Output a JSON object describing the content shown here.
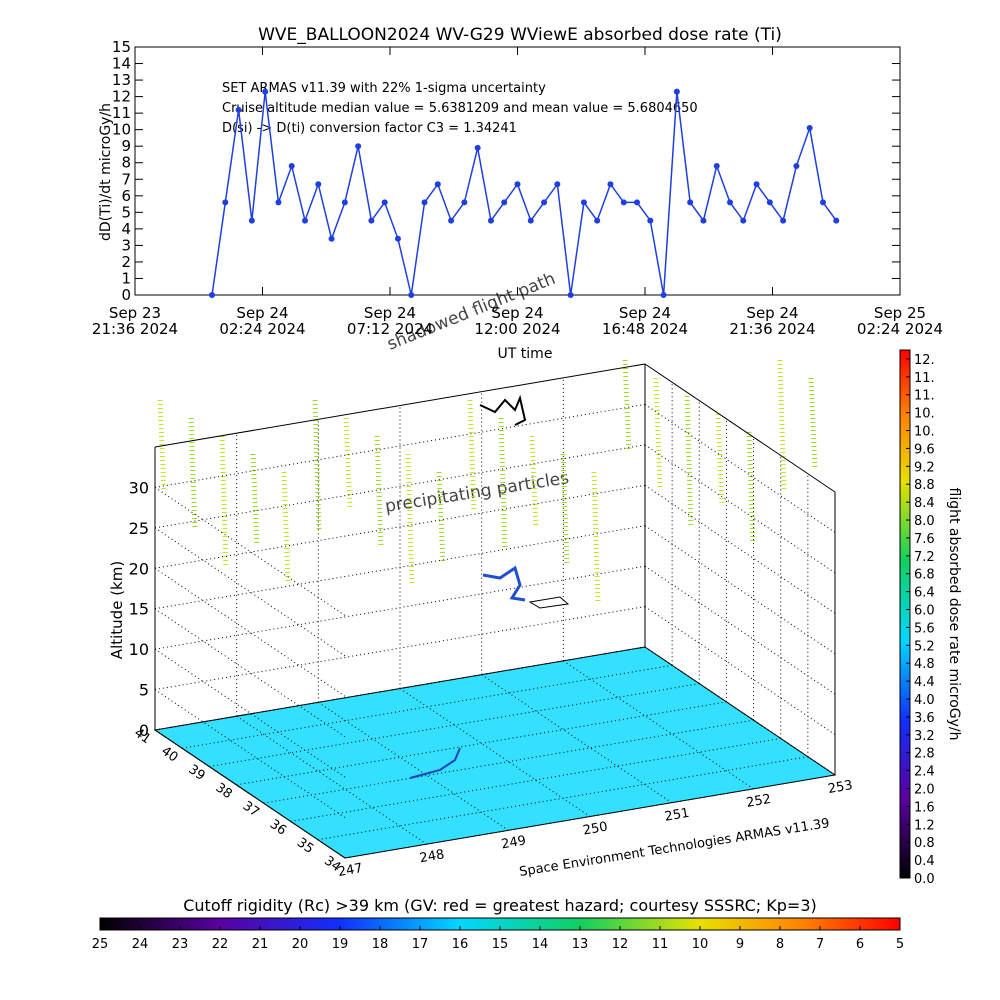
{
  "chart_data": [
    {
      "type": "line",
      "title": "WVE_BALLOON2024 WV-G29 WViewE absorbed dose rate (Ti)",
      "xlabel": "UT time",
      "ylabel": "dD(Ti)/dt microGy/h",
      "annotations": [
        "SET ARMAS v11.39 with 22% 1-sigma uncertainty",
        "Cruise altitude median value = 5.6381209 and mean value = 5.6804650",
        "D(si) -> D(ti) conversion factor C3 = 1.34241"
      ],
      "color": "#1f3fe0",
      "xlim": [
        "2024-09-23T21:36",
        "2024-09-25T02:24"
      ],
      "xticks": [
        {
          "value": "2024-09-23T21:36",
          "label": "Sep 23\n21:36 2024"
        },
        {
          "value": "2024-09-24T02:24",
          "label": "Sep 24\n02:24 2024"
        },
        {
          "value": "2024-09-24T07:12",
          "label": "Sep 24\n07:12 2024"
        },
        {
          "value": "2024-09-24T12:00",
          "label": "Sep 24\n12:00 2024"
        },
        {
          "value": "2024-09-24T16:48",
          "label": "Sep 24\n16:48 2024"
        },
        {
          "value": "2024-09-24T21:36",
          "label": "Sep 24\n21:36 2024"
        },
        {
          "value": "2024-09-25T02:24",
          "label": "Sep 25\n02:24 2024"
        }
      ],
      "ylim": [
        0,
        15
      ],
      "yticks": [
        0,
        1,
        2,
        3,
        4,
        5,
        6,
        7,
        8,
        9,
        10,
        11,
        12,
        13,
        14,
        15
      ],
      "x": [
        "2024-09-24T00:30",
        "2024-09-24T01:00",
        "2024-09-24T01:30",
        "2024-09-24T02:00",
        "2024-09-24T02:30",
        "2024-09-24T03:00",
        "2024-09-24T03:30",
        "2024-09-24T04:00",
        "2024-09-24T04:30",
        "2024-09-24T05:00",
        "2024-09-24T05:30",
        "2024-09-24T06:00",
        "2024-09-24T06:30",
        "2024-09-24T07:00",
        "2024-09-24T07:30",
        "2024-09-24T08:00",
        "2024-09-24T08:30",
        "2024-09-24T09:00",
        "2024-09-24T09:30",
        "2024-09-24T10:00",
        "2024-09-24T10:30",
        "2024-09-24T11:00",
        "2024-09-24T11:30",
        "2024-09-24T12:00",
        "2024-09-24T12:30",
        "2024-09-24T13:00",
        "2024-09-24T13:30",
        "2024-09-24T14:00",
        "2024-09-24T14:30",
        "2024-09-24T15:00",
        "2024-09-24T15:30",
        "2024-09-24T16:00",
        "2024-09-24T16:30",
        "2024-09-24T17:00",
        "2024-09-24T17:30",
        "2024-09-24T18:00",
        "2024-09-24T18:30",
        "2024-09-24T19:00",
        "2024-09-24T19:30",
        "2024-09-24T20:00",
        "2024-09-24T20:30",
        "2024-09-24T21:00",
        "2024-09-24T21:30",
        "2024-09-24T22:00",
        "2024-09-24T22:30",
        "2024-09-24T23:00",
        "2024-09-24T23:30",
        "2024-09-25T00:00"
      ],
      "values": [
        0,
        5.6,
        11.2,
        4.5,
        12.3,
        5.6,
        7.8,
        4.5,
        6.7,
        3.4,
        5.6,
        9.0,
        4.5,
        5.6,
        3.4,
        0,
        5.6,
        6.7,
        4.5,
        5.6,
        8.9,
        4.5,
        5.6,
        6.7,
        4.5,
        5.6,
        6.7,
        0,
        5.6,
        4.5,
        6.7,
        5.6,
        5.6,
        4.5,
        0,
        12.3,
        5.6,
        4.5,
        7.8,
        5.6,
        4.5,
        6.7,
        5.6,
        4.5,
        7.8,
        10.1,
        5.6,
        4.5
      ]
    },
    {
      "type": "surface3d",
      "zlabel": "Altitude (km)",
      "zlim": [
        0,
        35
      ],
      "zticks": [
        0,
        5,
        10,
        15,
        20,
        25,
        30
      ],
      "ylim": [
        34,
        41
      ],
      "yticks": [
        34,
        35,
        36,
        37,
        38,
        39,
        40,
        41
      ],
      "xlim": [
        247,
        253
      ],
      "xticks": [
        247,
        248,
        249,
        250,
        251,
        252,
        253
      ],
      "annotations": [
        "precipitating particles",
        "shadowed flight path",
        "Space Environment Technologies ARMAS v11.39"
      ],
      "colorbar": {
        "label": "flight absorbed dose rate microGy/h",
        "lim": [
          0,
          11.8
        ],
        "ticks": [
          {
            "value": 0,
            "label": "0.0"
          },
          0.4,
          0.8,
          1.2,
          1.6,
          {
            "value": 2,
            "label": "2.0"
          },
          2.4,
          2.8,
          3.2,
          3.6,
          {
            "value": 4,
            "label": "4.0"
          },
          4.4,
          4.8,
          5.2,
          5.6,
          {
            "value": 6,
            "label": "6.0"
          },
          6.4,
          6.8,
          7.2,
          7.6,
          {
            "value": 8,
            "label": "8.0"
          },
          8.4,
          8.8,
          9.2,
          9.6,
          {
            "value": 10,
            "label": "10."
          },
          {
            "value": 10.4,
            "label": "10."
          },
          {
            "value": 10.8,
            "label": "11."
          },
          {
            "value": 11.2,
            "label": "11."
          },
          {
            "value": 11.6,
            "label": "12."
          }
        ]
      },
      "colorbar2": {
        "label": "Cutoff rigidity (Rc) >39 km (GV: red = greatest hazard; courtesy SSSRC; Kp=3)",
        "lim": [
          25,
          5
        ],
        "ticks": [
          25,
          24,
          23,
          22,
          21,
          20,
          19,
          18,
          17,
          16,
          15,
          14,
          13,
          12,
          11,
          10,
          9,
          8,
          7,
          6,
          5
        ]
      }
    }
  ]
}
